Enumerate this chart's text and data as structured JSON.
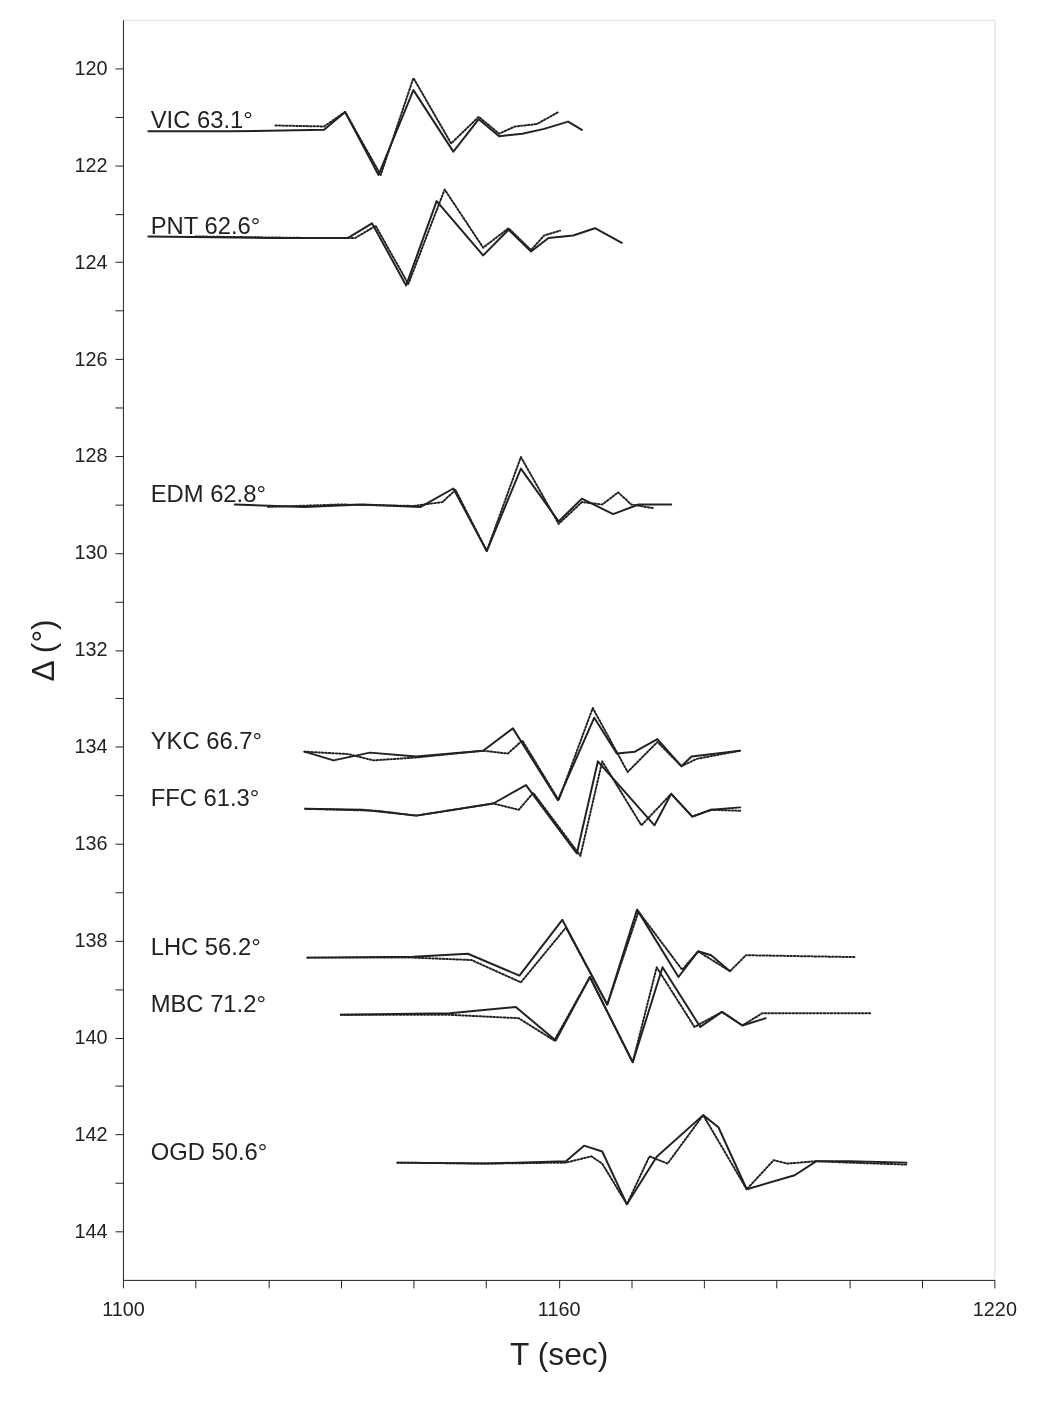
{
  "chart_data": {
    "type": "line",
    "xlabel": "T (sec)",
    "ylabel": "Δ (°)",
    "xlim": [
      1100,
      1220
    ],
    "xticks": [
      1100,
      {
        "value": 1110,
        "label": null
      },
      {
        "value": 1120,
        "label": null
      },
      {
        "value": 1130,
        "label": null
      },
      {
        "value": 1140,
        "label": null
      },
      {
        "value": 1150,
        "label": null
      },
      1160,
      {
        "value": 1170,
        "label": null
      },
      {
        "value": 1180,
        "label": null
      },
      {
        "value": 1190,
        "label": null
      },
      {
        "value": 1200,
        "label": null
      },
      {
        "value": 1210,
        "label": null
      },
      1220
    ],
    "ylim": [
      145,
      119
    ],
    "yticks": [
      120,
      {
        "value": 121,
        "label": null
      },
      122,
      {
        "value": 123,
        "label": null
      },
      124,
      {
        "value": 125,
        "label": null
      },
      126,
      {
        "value": 127,
        "label": null
      },
      128,
      {
        "value": 129,
        "label": null
      },
      130,
      {
        "value": 131,
        "label": null
      },
      132,
      {
        "value": 133,
        "label": null
      },
      134,
      {
        "value": 135,
        "label": null
      },
      136,
      {
        "value": 137,
        "label": null
      },
      138,
      {
        "value": 139,
        "label": null
      },
      140,
      {
        "value": 141,
        "label": null
      },
      142,
      {
        "value": 143,
        "label": null
      },
      144
    ],
    "grid": false,
    "series": [
      {
        "color": "#222222",
        "line_style": "solid",
        "x": [
          1103.5,
          1115,
          1127.7,
          1130.6,
          1135.2,
          1140,
          1145.5,
          1149,
          1151.8,
          1155,
          1158,
          1161.3,
          1163.2
        ],
        "values": [
          121.3,
          121.3,
          121.27,
          120.9,
          122.2,
          120.45,
          121.72,
          121.05,
          121.4,
          121.35,
          121.25,
          121.1,
          121.27
        ]
      },
      {
        "color": "#222222",
        "line_style": "dotted",
        "x": [
          1121,
          1127.7,
          1130.6,
          1135.5,
          1140,
          1145.2,
          1149,
          1151.8,
          1154,
          1157,
          1160
        ],
        "values": [
          121.18,
          121.2,
          120.9,
          122.2,
          120.2,
          121.55,
          121.0,
          121.35,
          121.2,
          121.15,
          120.9
        ]
      },
      {
        "color": "#222222",
        "line_style": "solid",
        "x": [
          1103.5,
          1120,
          1131,
          1134.3,
          1139,
          1143.2,
          1149.6,
          1153.1,
          1156.2,
          1158.6,
          1162,
          1165,
          1168.7
        ],
        "values": [
          123.47,
          123.5,
          123.5,
          123.2,
          124.48,
          122.74,
          123.86,
          123.33,
          123.78,
          123.5,
          123.45,
          123.3,
          123.6
        ]
      },
      {
        "color": "#222222",
        "line_style": "dotted",
        "x": [
          1110,
          1125,
          1132,
          1134.8,
          1139.3,
          1144.3,
          1149.6,
          1153.1,
          1156.2,
          1158,
          1160.2
        ],
        "values": [
          123.47,
          123.5,
          123.5,
          123.25,
          124.45,
          122.5,
          123.7,
          123.3,
          123.75,
          123.45,
          123.35
        ]
      },
      {
        "color": "#222222",
        "line_style": "solid",
        "x": [
          1115.4,
          1125,
          1133,
          1141,
          1145.5,
          1150.1,
          1154.8,
          1160,
          1163.2,
          1167.5,
          1171,
          1175.5
        ],
        "values": [
          129.0,
          129.05,
          129.0,
          129.05,
          128.67,
          129.96,
          128.26,
          129.35,
          128.88,
          129.2,
          129.0,
          129.0
        ]
      },
      {
        "color": "#222222",
        "line_style": "dotted",
        "x": [
          1120,
          1130,
          1140,
          1144,
          1145.8,
          1150.1,
          1154.8,
          1160,
          1163.2,
          1166,
          1168.2,
          1170,
          1173.2
        ],
        "values": [
          129.05,
          129.0,
          129.03,
          128.95,
          128.7,
          129.96,
          128.02,
          129.4,
          128.95,
          129.0,
          128.75,
          129.0,
          129.08
        ]
      },
      {
        "color": "#222222",
        "line_style": "solid",
        "x": [
          1125,
          1129,
          1134,
          1140.4,
          1149.6,
          1153.7,
          1159.9,
          1164.9,
          1168,
          1170.5,
          1173.6,
          1176.9,
          1178.3,
          1185
        ],
        "values": [
          134.1,
          134.28,
          134.12,
          134.2,
          134.08,
          133.62,
          135.1,
          133.4,
          134.14,
          134.1,
          133.84,
          134.4,
          134.2,
          134.08
        ]
      },
      {
        "color": "#222222",
        "line_style": "dotted",
        "x": [
          1125,
          1131,
          1134.5,
          1140.4,
          1149.6,
          1153,
          1155,
          1160,
          1164.7,
          1169.5,
          1173.6,
          1176.9,
          1179,
          1185
        ],
        "values": [
          134.1,
          134.15,
          134.28,
          134.22,
          134.08,
          134.14,
          133.87,
          135.1,
          133.2,
          134.52,
          133.9,
          134.4,
          134.25,
          134.08
        ]
      },
      {
        "color": "#222222",
        "line_style": "solid",
        "x": [
          1125.1,
          1133,
          1140.4,
          1151,
          1155.5,
          1162.5,
          1165.4,
          1173.2,
          1175.5,
          1178.4,
          1181,
          1185
        ],
        "values": [
          135.28,
          135.3,
          135.42,
          135.17,
          134.79,
          136.2,
          134.3,
          135.62,
          134.97,
          135.44,
          135.3,
          135.25
        ]
      },
      {
        "color": "#222222",
        "line_style": "dotted",
        "x": [
          1125.1,
          1135,
          1140.4,
          1151,
          1154.5,
          1156.5,
          1163,
          1166,
          1171.4,
          1175.5,
          1178.4,
          1181,
          1185
        ],
        "values": [
          135.28,
          135.32,
          135.42,
          135.17,
          135.3,
          134.95,
          136.25,
          134.3,
          135.62,
          134.97,
          135.44,
          135.3,
          135.32
        ]
      },
      {
        "color": "#222222",
        "line_style": "solid",
        "x": [
          1125.4,
          1140,
          1147.5,
          1154.6,
          1160.5,
          1166.7,
          1170.8,
          1176.5,
          1179.2,
          1181,
          1183.6
        ],
        "values": [
          138.35,
          138.33,
          138.27,
          138.72,
          137.57,
          139.32,
          137.36,
          138.75,
          138.22,
          138.3,
          138.63
        ]
      },
      {
        "color": "#222222",
        "line_style": "dotted",
        "x": [
          1125.4,
          1140,
          1148,
          1154.8,
          1161,
          1166.7,
          1171,
          1177,
          1179.2,
          1183.6,
          1185.8,
          1201
        ],
        "values": [
          138.35,
          138.35,
          138.4,
          138.86,
          137.73,
          139.32,
          137.4,
          138.6,
          138.22,
          138.63,
          138.3,
          138.34
        ]
      },
      {
        "color": "#222222",
        "line_style": "solid",
        "x": [
          1130,
          1145,
          1154.1,
          1159.6,
          1164.3,
          1170.2,
          1174.3,
          1179.5,
          1182.5,
          1185.3,
          1188.5
        ],
        "values": [
          139.53,
          139.5,
          139.37,
          140.06,
          138.75,
          140.51,
          138.55,
          139.78,
          139.47,
          139.75,
          139.6
        ]
      },
      {
        "color": "#222222",
        "line_style": "dotted",
        "x": [
          1130,
          1145,
          1154.5,
          1159.4,
          1164.3,
          1170.2,
          1173.5,
          1178.7,
          1182.5,
          1185.3,
          1188,
          1202.9
        ],
        "values": [
          139.53,
          139.53,
          139.6,
          140.06,
          138.75,
          140.51,
          138.55,
          139.78,
          139.47,
          139.75,
          139.5,
          139.5
        ]
      },
      {
        "color": "#222222",
        "line_style": "solid",
        "x": [
          1137.8,
          1150,
          1161,
          1163.5,
          1166,
          1169.4,
          1173.5,
          1179.9,
          1182,
          1185.9,
          1192.5,
          1195.5,
          1200,
          1207.9
        ],
        "values": [
          142.58,
          142.6,
          142.55,
          142.23,
          142.35,
          143.44,
          142.46,
          141.6,
          141.85,
          143.13,
          142.84,
          142.55,
          142.55,
          142.58
        ]
      },
      {
        "color": "#222222",
        "line_style": "dotted",
        "x": [
          1137.8,
          1150,
          1161,
          1164.5,
          1166,
          1169.4,
          1172.5,
          1175,
          1179.9,
          1185.9,
          1189.6,
          1191.5,
          1195.5,
          1200,
          1207.9
        ],
        "values": [
          142.58,
          142.6,
          142.58,
          142.45,
          142.6,
          143.44,
          142.45,
          142.6,
          141.6,
          143.13,
          142.53,
          142.6,
          142.55,
          142.58,
          142.62
        ]
      }
    ],
    "annotations": [
      "VIC  63.1°",
      "PNT  62.6°",
      "EDM  62.8°",
      "YKC  66.7°",
      "FFC  61.3°",
      "LHC  56.2°",
      "MBC  71.2°",
      "OGD  50.6°"
    ]
  }
}
